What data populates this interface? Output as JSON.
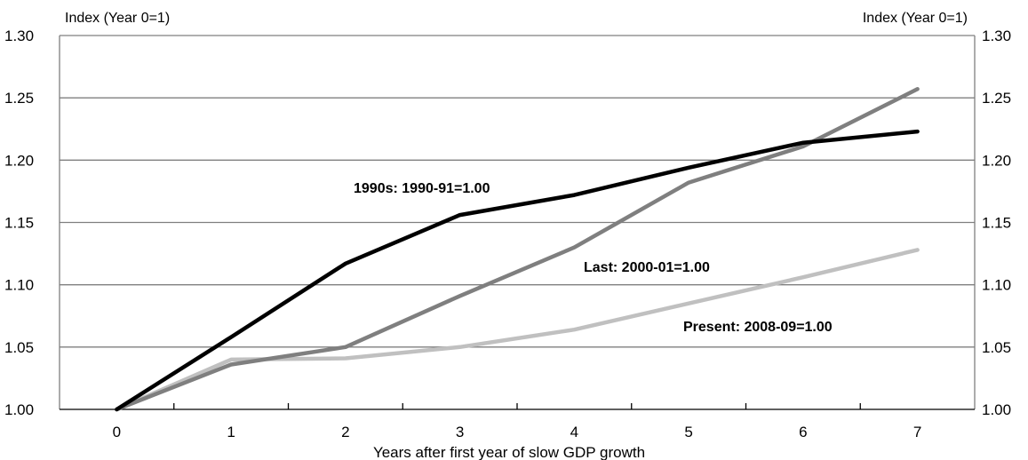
{
  "chart_data": {
    "type": "line",
    "left_unit": "Index (Year 0=1)",
    "right_unit": "Index (Year 0=1)",
    "xlabel": "Years after first year of slow GDP growth",
    "x": [
      0,
      1,
      2,
      3,
      4,
      5,
      6,
      7
    ],
    "x_tick_labels": [
      "0",
      "1",
      "2",
      "3",
      "4",
      "5",
      "6",
      "7"
    ],
    "y_ticks": [
      1.0,
      1.05,
      1.1,
      1.15,
      1.2,
      1.25,
      1.3
    ],
    "y_tick_labels": [
      "1.00",
      "1.05",
      "1.10",
      "1.15",
      "1.20",
      "1.25",
      "1.30"
    ],
    "ylim": [
      1.0,
      1.3
    ],
    "grid": "horizontal",
    "series": [
      {
        "name": "1990s: 1990-91=1.00",
        "label": "1990s:  1990-91=1.00",
        "color": "#000000",
        "values": [
          1.0,
          1.058,
          1.117,
          1.156,
          1.172,
          1.194,
          1.214,
          1.223
        ]
      },
      {
        "name": "Last: 2000-01=1.00",
        "label": "Last:  2000-01=1.00",
        "color": "#7f7f7f",
        "values": [
          1.0,
          1.036,
          1.05,
          1.091,
          1.13,
          1.182,
          1.211,
          1.257
        ]
      },
      {
        "name": "Present: 2008-09=1.00",
        "label": "Present:  2008-09=1.00",
        "color": "#c0c0c0",
        "values": [
          1.0,
          1.04,
          1.041,
          1.05,
          1.064,
          1.085,
          1.106,
          1.128
        ]
      }
    ]
  }
}
